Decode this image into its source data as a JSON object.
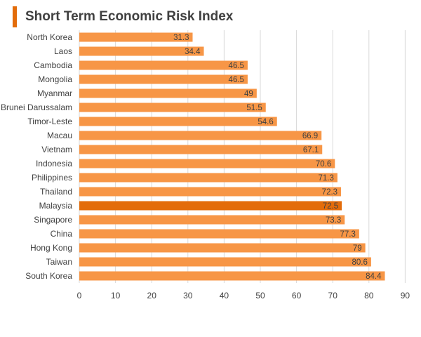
{
  "header": {
    "title": "Short Term Economic Risk Index"
  },
  "colors": {
    "accent": "#E36C0A",
    "bar": "#F79646",
    "highlight": "#E36C0A",
    "grid": "#D9D9D9",
    "text": "#404040"
  },
  "chart_data": {
    "type": "bar",
    "orientation": "horizontal",
    "title": "Short Term Economic Risk Index",
    "xlabel": "",
    "ylabel": "",
    "xlim": [
      0,
      90
    ],
    "ticks": [
      0,
      10,
      20,
      30,
      40,
      50,
      60,
      70,
      80,
      90
    ],
    "grid": true,
    "legend": "none",
    "highlight": "Malaysia",
    "categories": [
      "North Korea",
      "Laos",
      "Cambodia",
      "Mongolia",
      "Myanmar",
      "Brunei Darussalam",
      "Timor-Leste",
      "Macau",
      "Vietnam",
      "Indonesia",
      "Philippines",
      "Thailand",
      "Malaysia",
      "Singapore",
      "China",
      "Hong Kong",
      "Taiwan",
      "South Korea"
    ],
    "values": [
      31.3,
      34.4,
      46.5,
      46.5,
      49,
      51.5,
      54.6,
      66.9,
      67.1,
      70.6,
      71.3,
      72.3,
      72.5,
      73.3,
      77.3,
      79,
      80.6,
      84.4
    ]
  }
}
